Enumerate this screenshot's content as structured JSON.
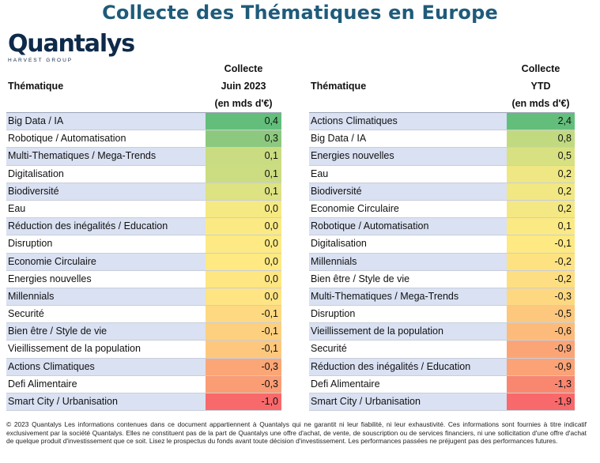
{
  "title": "Collecte des Thématiques en Europe",
  "logo": {
    "name": "Quantalys",
    "subtitle": "HARVEST GROUP"
  },
  "left_table": {
    "theme_header": "Thématique",
    "value_header": [
      "Collecte",
      "Juin 2023",
      "(en mds d'€)"
    ],
    "rows": [
      {
        "label": "Big Data / IA",
        "value": "0,4",
        "color": "#63be7b"
      },
      {
        "label": "Robotique / Automatisation",
        "value": "0,3",
        "color": "#8cc97e"
      },
      {
        "label": "Multi-Thematiques / Mega-Trends",
        "value": "0,1",
        "color": "#c9dc81"
      },
      {
        "label": "Digitalisation",
        "value": "0,1",
        "color": "#cbdc81"
      },
      {
        "label": "Biodiversité",
        "value": "0,1",
        "color": "#dde282"
      },
      {
        "label": "Eau",
        "value": "0,0",
        "color": "#f5e984"
      },
      {
        "label": "Réduction des inégalités / Education",
        "value": "0,0",
        "color": "#fbea84"
      },
      {
        "label": "Disruption",
        "value": "0,0",
        "color": "#fdea84"
      },
      {
        "label": "Economie Circulaire",
        "value": "0,0",
        "color": "#fee983"
      },
      {
        "label": "Energies nouvelles",
        "value": "0,0",
        "color": "#fee683"
      },
      {
        "label": "Millennials",
        "value": "0,0",
        "color": "#fee483"
      },
      {
        "label": "Securité",
        "value": "-0,1",
        "color": "#fed981"
      },
      {
        "label": "Bien être / Style de vie",
        "value": "-0,1",
        "color": "#fdd07f"
      },
      {
        "label": "Vieillissement de la population",
        "value": "-0,1",
        "color": "#fdc87d"
      },
      {
        "label": "Actions Climatiques",
        "value": "-0,3",
        "color": "#fba676"
      },
      {
        "label": "Defi Alimentaire",
        "value": "-0,3",
        "color": "#fa9d75"
      },
      {
        "label": "Smart City / Urbanisation",
        "value": "-1,0",
        "color": "#f8696b"
      }
    ]
  },
  "right_table": {
    "theme_header": "Thématique",
    "value_header": [
      "Collecte",
      "YTD",
      "(en mds d'€)"
    ],
    "rows": [
      {
        "label": "Actions Climatiques",
        "value": "2,4",
        "color": "#63be7b"
      },
      {
        "label": "Big Data / IA",
        "value": "0,8",
        "color": "#c1da80"
      },
      {
        "label": "Energies nouvelles",
        "value": "0,5",
        "color": "#d8e182"
      },
      {
        "label": "Eau",
        "value": "0,2",
        "color": "#eee783"
      },
      {
        "label": "Biodiversité",
        "value": "0,2",
        "color": "#f1e783"
      },
      {
        "label": "Economie Circulaire",
        "value": "0,2",
        "color": "#f3e884"
      },
      {
        "label": "Robotique / Automatisation",
        "value": "0,1",
        "color": "#fbea84"
      },
      {
        "label": "Digitalisation",
        "value": "-0,1",
        "color": "#fee983"
      },
      {
        "label": "Millennials",
        "value": "-0,2",
        "color": "#fee282"
      },
      {
        "label": "Bien être / Style de vie",
        "value": "-0,2",
        "color": "#fede82"
      },
      {
        "label": "Multi-Thematiques / Mega-Trends",
        "value": "-0,3",
        "color": "#fed880"
      },
      {
        "label": "Disruption",
        "value": "-0,5",
        "color": "#fdc77d"
      },
      {
        "label": "Vieillissement de la population",
        "value": "-0,6",
        "color": "#fcbb7b"
      },
      {
        "label": "Securité",
        "value": "-0,9",
        "color": "#fba576"
      },
      {
        "label": "Réduction des inégalités / Education",
        "value": "-0,9",
        "color": "#fba276"
      },
      {
        "label": "Defi Alimentaire",
        "value": "-1,3",
        "color": "#f98770"
      },
      {
        "label": "Smart City / Urbanisation",
        "value": "-1,9",
        "color": "#f8696b"
      }
    ]
  },
  "footer": "© 2023 Quantalys Les informations contenues dans ce document appartiennent à Quantalys qui ne garantit ni leur fiabilité, ni leur exhaustivité. Ces informations sont fournies à titre indicatif exclusivement par la société Quantalys. Elles ne constituent pas de la part de Quantalys une offre d'achat, de vente, de souscription ou de services financiers, ni une sollicitation d'une offre d'achat de quelque produit d'investissement que ce soit. Lisez le prospectus du fonds avant toute décision d'investissement. Les performances passées ne préjugent pas des performances futures."
}
